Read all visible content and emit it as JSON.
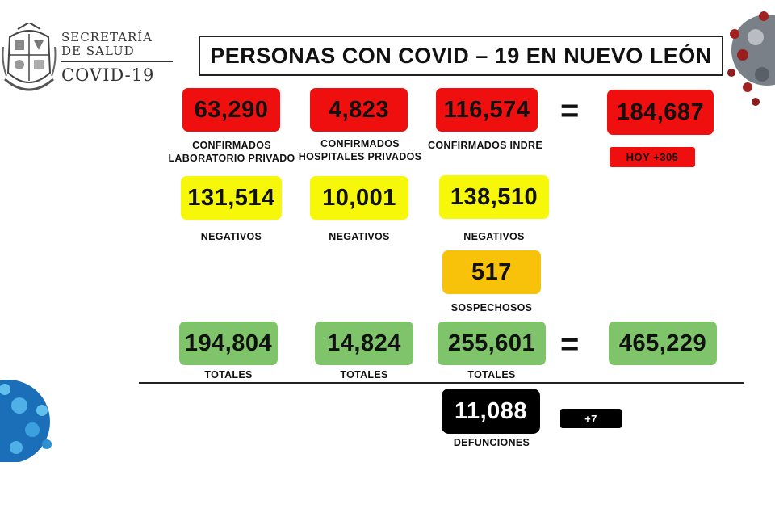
{
  "header": {
    "org_line1": "SECRETARÍA",
    "org_line2": "DE SALUD",
    "org_line3": "COVID-19",
    "title": "PERSONAS CON COVID – 19 EN NUEVO LEÓN"
  },
  "confirmed": {
    "private_lab": "63,290",
    "private_lab_label_1": "CONFIRMADOS",
    "private_lab_label_2": "LABORATORIO PRIVADO",
    "private_hosp": "4,823",
    "private_hosp_label_1": "CONFIRMADOS",
    "private_hosp_label_2": "HOSPITALES PRIVADOS",
    "indre": "116,574",
    "indre_label": "CONFIRMADOS INDRE",
    "equals": "=",
    "total": "184,687",
    "today": "HOY +305"
  },
  "negatives": {
    "private_lab": "131,514",
    "private_hosp": "10,001",
    "indre": "138,510",
    "label": "NEGATIVOS"
  },
  "suspects": {
    "value": "517",
    "label": "SOSPECHOSOS"
  },
  "totals": {
    "private_lab": "194,804",
    "private_hosp": "14,824",
    "indre": "255,601",
    "equals": "=",
    "grand_total": "465,229",
    "label": "TOTALES"
  },
  "deaths": {
    "value": "11,088",
    "label": "DEFUNCIONES",
    "today": "+7"
  },
  "colors": {
    "confirmed": "#f00f0f",
    "negative": "#f7f70a",
    "suspect": "#f9c20a",
    "total": "#7fc46a",
    "deaths": "#000000"
  }
}
